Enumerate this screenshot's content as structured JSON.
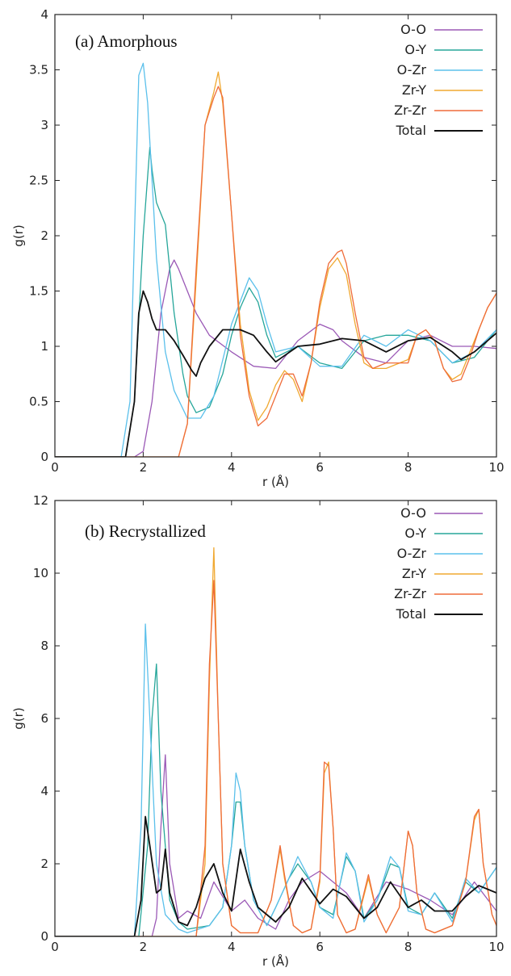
{
  "chart_data": [
    {
      "type": "line",
      "title": "(a) Amorphous",
      "xlabel": "r (Å)",
      "ylabel": "g(r)",
      "xlim": [
        0,
        10
      ],
      "ylim": [
        0,
        4
      ],
      "xticks": [
        0,
        2,
        4,
        6,
        8,
        10
      ],
      "yticks": [
        0,
        0.5,
        1,
        1.5,
        2,
        2.5,
        3,
        3.5,
        4
      ],
      "legend_position": "top-right",
      "grid": false,
      "series": [
        {
          "name": "O-O",
          "color": "#9b59b6",
          "x": [
            0,
            1.8,
            2.0,
            2.2,
            2.4,
            2.6,
            2.7,
            2.8,
            3.0,
            3.2,
            3.5,
            4.0,
            4.5,
            5.0,
            5.5,
            6.0,
            6.3,
            6.5,
            7.0,
            7.5,
            8.0,
            8.5,
            9.0,
            9.5,
            10.0
          ],
          "y": [
            0,
            0,
            0.05,
            0.5,
            1.3,
            1.7,
            1.78,
            1.7,
            1.5,
            1.3,
            1.1,
            0.95,
            0.82,
            0.8,
            1.05,
            1.2,
            1.15,
            1.05,
            0.9,
            0.85,
            1.05,
            1.1,
            1.0,
            1.0,
            0.98
          ]
        },
        {
          "name": "O-Y",
          "color": "#26a69a",
          "x": [
            0,
            1.6,
            1.8,
            2.0,
            2.15,
            2.2,
            2.3,
            2.5,
            2.7,
            2.9,
            3.0,
            3.2,
            3.5,
            3.8,
            4.0,
            4.2,
            4.4,
            4.6,
            4.8,
            5.0,
            5.5,
            6.0,
            6.5,
            7.0,
            7.5,
            8.0,
            8.5,
            9.0,
            9.5,
            10.0
          ],
          "y": [
            0,
            0,
            0.5,
            2.0,
            2.8,
            2.6,
            2.3,
            2.1,
            1.3,
            0.75,
            0.55,
            0.4,
            0.45,
            0.75,
            1.1,
            1.35,
            1.53,
            1.4,
            1.1,
            0.9,
            1.0,
            0.85,
            0.8,
            1.05,
            1.1,
            1.1,
            1.05,
            0.85,
            0.9,
            1.15
          ]
        },
        {
          "name": "O-Zr",
          "color": "#5bc0eb",
          "x": [
            0,
            1.5,
            1.7,
            1.9,
            2.0,
            2.1,
            2.3,
            2.5,
            2.7,
            3.0,
            3.3,
            3.6,
            4.0,
            4.4,
            4.6,
            4.8,
            5.0,
            5.5,
            6.0,
            6.5,
            7.0,
            7.5,
            8.0,
            8.5,
            9.0,
            9.5,
            10.0
          ],
          "y": [
            0,
            0,
            0.5,
            3.45,
            3.56,
            3.2,
            1.8,
            0.95,
            0.6,
            0.35,
            0.35,
            0.55,
            1.2,
            1.62,
            1.5,
            1.2,
            0.95,
            1.0,
            0.82,
            0.82,
            1.1,
            1.0,
            1.15,
            1.05,
            0.85,
            0.95,
            1.15
          ]
        },
        {
          "name": "Zr-Y",
          "color": "#f0a830",
          "x": [
            0,
            2.8,
            3.0,
            3.2,
            3.4,
            3.6,
            3.7,
            3.8,
            4.0,
            4.2,
            4.4,
            4.6,
            4.8,
            5.0,
            5.2,
            5.4,
            5.6,
            5.8,
            6.0,
            6.2,
            6.4,
            6.6,
            6.8,
            7.0,
            7.2,
            7.5,
            8.0,
            8.2,
            8.4,
            8.6,
            8.8,
            9.0,
            9.2,
            9.4,
            9.6,
            9.8,
            10.0
          ],
          "y": [
            0,
            0,
            0.3,
            1.6,
            3.0,
            3.3,
            3.48,
            3.2,
            2.2,
            1.2,
            0.6,
            0.33,
            0.45,
            0.65,
            0.78,
            0.7,
            0.5,
            0.85,
            1.35,
            1.7,
            1.8,
            1.65,
            1.2,
            0.85,
            0.8,
            0.8,
            0.88,
            1.1,
            1.15,
            1.05,
            0.8,
            0.7,
            0.75,
            0.95,
            1.15,
            1.35,
            1.48
          ]
        },
        {
          "name": "Zr-Zr",
          "color": "#ef6c3a",
          "x": [
            0,
            2.8,
            3.0,
            3.2,
            3.4,
            3.6,
            3.7,
            3.8,
            4.0,
            4.2,
            4.4,
            4.6,
            4.8,
            5.0,
            5.2,
            5.4,
            5.6,
            5.8,
            6.0,
            6.2,
            6.4,
            6.5,
            6.6,
            6.8,
            7.0,
            7.2,
            7.5,
            8.0,
            8.2,
            8.4,
            8.6,
            8.8,
            9.0,
            9.2,
            9.4,
            9.6,
            9.8,
            10.0
          ],
          "y": [
            0,
            0,
            0.3,
            1.7,
            3.0,
            3.25,
            3.35,
            3.25,
            2.2,
            1.1,
            0.55,
            0.28,
            0.35,
            0.55,
            0.75,
            0.75,
            0.55,
            0.85,
            1.4,
            1.75,
            1.85,
            1.87,
            1.75,
            1.3,
            0.9,
            0.8,
            0.85,
            0.85,
            1.1,
            1.15,
            1.05,
            0.8,
            0.68,
            0.7,
            0.9,
            1.15,
            1.35,
            1.48
          ]
        },
        {
          "name": "Total",
          "color": "#111111",
          "x": [
            0,
            1.6,
            1.8,
            1.9,
            2.0,
            2.1,
            2.2,
            2.3,
            2.5,
            2.7,
            2.9,
            3.1,
            3.2,
            3.3,
            3.5,
            3.8,
            4.0,
            4.2,
            4.5,
            4.8,
            5.0,
            5.5,
            6.0,
            6.5,
            7.0,
            7.5,
            8.0,
            8.5,
            9.0,
            9.2,
            9.5,
            10.0
          ],
          "y": [
            0,
            0,
            0.5,
            1.3,
            1.5,
            1.4,
            1.25,
            1.15,
            1.15,
            1.05,
            0.92,
            0.78,
            0.73,
            0.85,
            1.0,
            1.15,
            1.15,
            1.15,
            1.1,
            0.95,
            0.86,
            1.0,
            1.02,
            1.07,
            1.05,
            0.95,
            1.05,
            1.08,
            0.95,
            0.88,
            0.95,
            1.12
          ]
        }
      ]
    },
    {
      "type": "line",
      "title": "(b) Recrystallized",
      "xlabel": "r (Å)",
      "ylabel": "g(r)",
      "xlim": [
        0,
        10
      ],
      "ylim": [
        0,
        12
      ],
      "xticks": [
        0,
        2,
        4,
        6,
        8,
        10
      ],
      "yticks": [
        0,
        2,
        4,
        6,
        8,
        10,
        12
      ],
      "legend_position": "top-right",
      "grid": false,
      "series": [
        {
          "name": "O-O",
          "color": "#9b59b6",
          "x": [
            0,
            2.2,
            2.3,
            2.4,
            2.5,
            2.6,
            2.8,
            3.0,
            3.3,
            3.6,
            4.0,
            4.3,
            4.6,
            5.0,
            5.3,
            5.6,
            6.0,
            6.3,
            6.6,
            7.0,
            7.5,
            8.0,
            8.5,
            9.0,
            9.5,
            10.0
          ],
          "y": [
            0,
            0,
            0.5,
            3.0,
            5.0,
            2.0,
            0.5,
            0.7,
            0.5,
            1.5,
            0.7,
            1.0,
            0.5,
            0.2,
            1.0,
            1.5,
            1.8,
            1.5,
            1.2,
            0.5,
            1.5,
            1.3,
            1.0,
            0.6,
            1.5,
            0.7
          ]
        },
        {
          "name": "O-Y",
          "color": "#26a69a",
          "x": [
            0,
            1.9,
            2.1,
            2.2,
            2.3,
            2.4,
            2.6,
            2.8,
            3.0,
            3.5,
            3.8,
            4.0,
            4.1,
            4.2,
            4.3,
            4.5,
            4.8,
            5.0,
            5.3,
            5.5,
            5.8,
            6.0,
            6.3,
            6.6,
            6.8,
            7.0,
            7.3,
            7.6,
            7.8,
            8.0,
            8.3,
            8.6,
            9.0,
            9.3,
            9.6,
            10.0
          ],
          "y": [
            0,
            0,
            2.5,
            6.0,
            7.5,
            4.0,
            1.0,
            0.4,
            0.2,
            0.3,
            0.8,
            2.5,
            3.7,
            3.7,
            2.5,
            1.0,
            0.3,
            0.8,
            1.6,
            2.0,
            1.5,
            0.8,
            0.6,
            2.2,
            1.8,
            0.5,
            1.0,
            2.0,
            1.9,
            0.8,
            0.6,
            1.2,
            0.5,
            1.5,
            1.2,
            1.9
          ]
        },
        {
          "name": "O-Zr",
          "color": "#5bc0eb",
          "x": [
            0,
            1.8,
            1.95,
            2.05,
            2.15,
            2.3,
            2.5,
            2.8,
            3.0,
            3.5,
            3.8,
            4.0,
            4.1,
            4.2,
            4.3,
            4.5,
            4.8,
            5.0,
            5.3,
            5.5,
            5.8,
            6.0,
            6.3,
            6.6,
            6.8,
            7.0,
            7.3,
            7.6,
            7.8,
            8.0,
            8.3,
            8.6,
            9.0,
            9.3,
            9.6,
            10.0
          ],
          "y": [
            0,
            0,
            3.0,
            8.6,
            6.0,
            2.0,
            0.6,
            0.2,
            0.1,
            0.3,
            0.8,
            2.5,
            4.5,
            4.0,
            2.5,
            1.0,
            0.3,
            0.8,
            1.6,
            2.2,
            1.5,
            0.8,
            0.5,
            2.3,
            1.8,
            0.4,
            1.0,
            2.2,
            1.9,
            0.7,
            0.6,
            1.2,
            0.4,
            1.6,
            1.2,
            1.9
          ]
        },
        {
          "name": "Zr-Y",
          "color": "#f0a830",
          "x": [
            0,
            3.2,
            3.4,
            3.5,
            3.6,
            3.7,
            3.8,
            4.0,
            4.2,
            4.6,
            4.9,
            5.1,
            5.2,
            5.4,
            5.6,
            5.8,
            6.0,
            6.1,
            6.2,
            6.3,
            6.4,
            6.6,
            6.8,
            7.1,
            7.3,
            7.5,
            7.8,
            8.0,
            8.1,
            8.2,
            8.4,
            8.6,
            9.0,
            9.3,
            9.5,
            9.6,
            9.7,
            9.9,
            10.0
          ],
          "y": [
            0,
            0,
            2.0,
            7.0,
            10.7,
            6.0,
            2.0,
            0.3,
            0.1,
            0.1,
            1.0,
            2.4,
            1.6,
            0.3,
            0.1,
            0.2,
            1.5,
            4.5,
            4.8,
            3.0,
            0.6,
            0.1,
            0.2,
            1.6,
            0.6,
            0.1,
            0.8,
            2.9,
            2.5,
            1.2,
            0.2,
            0.1,
            0.3,
            1.5,
            3.2,
            3.5,
            2.0,
            0.6,
            0.3
          ]
        },
        {
          "name": "Zr-Zr",
          "color": "#ef6c3a",
          "x": [
            0,
            3.2,
            3.4,
            3.5,
            3.6,
            3.7,
            3.8,
            4.0,
            4.2,
            4.6,
            4.9,
            5.1,
            5.2,
            5.4,
            5.6,
            5.8,
            6.0,
            6.1,
            6.2,
            6.3,
            6.4,
            6.6,
            6.8,
            7.1,
            7.3,
            7.5,
            7.8,
            8.0,
            8.1,
            8.2,
            8.4,
            8.6,
            9.0,
            9.3,
            9.5,
            9.6,
            9.7,
            9.9,
            10.0
          ],
          "y": [
            0,
            0,
            2.5,
            7.5,
            9.8,
            6.0,
            2.0,
            0.3,
            0.1,
            0.1,
            1.0,
            2.5,
            1.7,
            0.3,
            0.1,
            0.2,
            1.6,
            4.8,
            4.7,
            3.0,
            0.6,
            0.1,
            0.2,
            1.7,
            0.6,
            0.1,
            0.8,
            2.9,
            2.5,
            1.2,
            0.2,
            0.1,
            0.3,
            1.5,
            3.3,
            3.5,
            2.0,
            0.6,
            0.3
          ]
        },
        {
          "name": "Total",
          "color": "#111111",
          "x": [
            0,
            1.8,
            1.95,
            2.05,
            2.15,
            2.3,
            2.4,
            2.5,
            2.6,
            2.8,
            3.0,
            3.2,
            3.4,
            3.6,
            3.8,
            4.0,
            4.2,
            4.4,
            4.6,
            5.0,
            5.3,
            5.6,
            6.0,
            6.3,
            6.6,
            7.0,
            7.3,
            7.6,
            8.0,
            8.3,
            8.6,
            9.0,
            9.3,
            9.6,
            10.0
          ],
          "y": [
            0,
            0,
            1.0,
            3.3,
            2.5,
            1.2,
            1.3,
            2.4,
            1.2,
            0.4,
            0.3,
            0.8,
            1.6,
            2.0,
            1.2,
            0.7,
            2.4,
            1.5,
            0.8,
            0.4,
            0.8,
            1.6,
            0.9,
            1.3,
            1.1,
            0.5,
            0.8,
            1.5,
            0.8,
            1.0,
            0.7,
            0.7,
            1.1,
            1.4,
            1.2
          ]
        }
      ]
    }
  ]
}
